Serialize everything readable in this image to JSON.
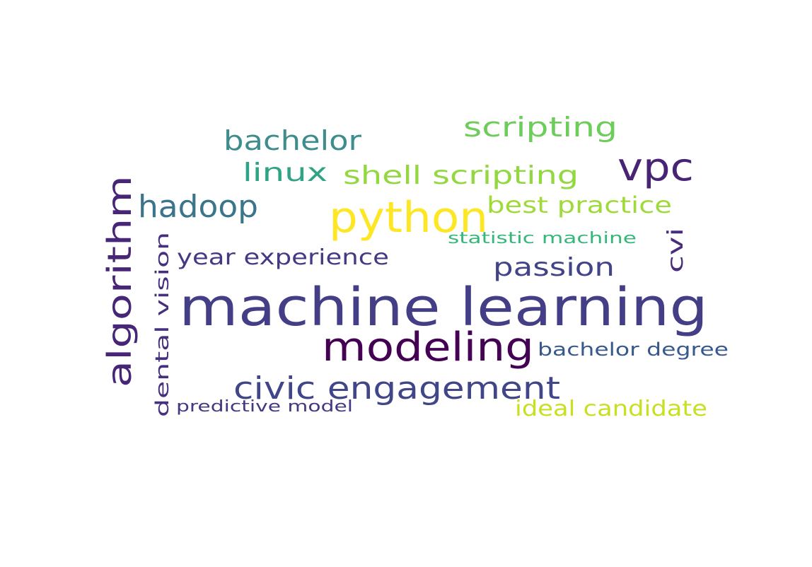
{
  "word_cloud": {
    "words": [
      {
        "text": "machine learning",
        "color": "#433e85"
      },
      {
        "text": "python",
        "color": "#fde725"
      },
      {
        "text": "modeling",
        "color": "#440154"
      },
      {
        "text": "algorithm",
        "color": "#482677"
      },
      {
        "text": "vpc",
        "color": "#482475"
      },
      {
        "text": "civic engagement",
        "color": "#404688"
      },
      {
        "text": "hadoop",
        "color": "#3b758b"
      },
      {
        "text": "bachelor",
        "color": "#3e8d8c"
      },
      {
        "text": "scripting",
        "color": "#6ccd5a"
      },
      {
        "text": "linux",
        "color": "#2ea385"
      },
      {
        "text": "shell scripting",
        "color": "#93d741"
      },
      {
        "text": "best practice",
        "color": "#a0da39"
      },
      {
        "text": "passion",
        "color": "#414487"
      },
      {
        "text": "year experience",
        "color": "#443983"
      },
      {
        "text": "dental vision",
        "color": "#46307e"
      },
      {
        "text": "cvi",
        "color": "#472d7b"
      },
      {
        "text": "statistic machine",
        "color": "#35b779"
      },
      {
        "text": "bachelor degree",
        "color": "#38598c"
      },
      {
        "text": "ideal candidate",
        "color": "#c8e020"
      },
      {
        "text": "predictive model",
        "color": "#453882"
      }
    ]
  }
}
